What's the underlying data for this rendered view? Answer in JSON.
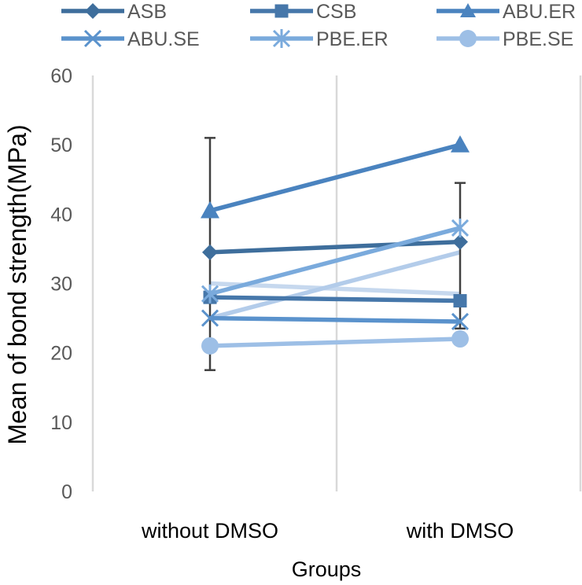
{
  "chart_data": {
    "type": "line",
    "title": "",
    "xlabel": "Groups",
    "ylabel": "Mean of  bond strength(MPa)",
    "categories": [
      "without DMSO",
      "with DMSO"
    ],
    "ylim": [
      0,
      60
    ],
    "yticks": [
      0,
      10,
      20,
      30,
      40,
      50,
      60
    ],
    "grid": "vertical",
    "legend_position": "top",
    "series": [
      {
        "name": "ASB",
        "marker": "diamond",
        "color": "#3E6E9C",
        "values": [
          34.5,
          36.0
        ],
        "error_low": [
          17,
          12.5
        ],
        "error_high": [
          16.5,
          8.5
        ]
      },
      {
        "name": "CSB",
        "marker": "square",
        "color": "#4677AA",
        "values": [
          28.0,
          27.5
        ]
      },
      {
        "name": "ABU.ER",
        "marker": "triangle",
        "color": "#4A83BF",
        "values": [
          40.5,
          50.0
        ]
      },
      {
        "name": "ABU.SE",
        "marker": "x",
        "color": "#5A92CC",
        "values": [
          25.0,
          24.5
        ]
      },
      {
        "name": "PBE.ER",
        "marker": "star",
        "color": "#7AAADC",
        "values": [
          28.5,
          38.0
        ]
      },
      {
        "name": "PBE.SE",
        "marker": "circle",
        "color": "#9DBFE6",
        "values": [
          21.0,
          22.0
        ]
      },
      {
        "name": "",
        "marker": "none",
        "color": "#C6D8EE",
        "values": [
          30.0,
          28.5
        ]
      },
      {
        "name": "",
        "marker": "none",
        "color": "#B3CCEA",
        "values": [
          25.0,
          34.5
        ]
      }
    ]
  }
}
